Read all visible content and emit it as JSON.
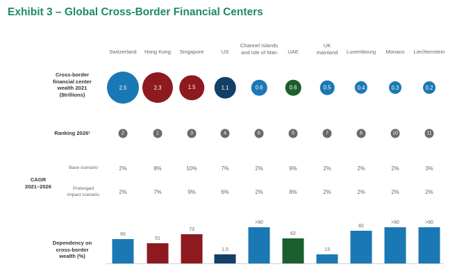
{
  "title": "Exhibit 3 – Global Cross-Border Financial Centers",
  "row_labels": {
    "wealth": [
      "Cross-border",
      "financial center",
      "wealth 2021",
      "($trillions)"
    ],
    "ranking": "Ranking 2026¹",
    "cagr": [
      "CAGR",
      "2021–2026"
    ],
    "base": "Base scenario",
    "prolonged": [
      "Prolonged",
      "impact scenario"
    ],
    "dependency": [
      "Dependency on",
      "cross-border",
      "wealth (%)"
    ]
  },
  "colors": {
    "blue": "#1a78b4",
    "red": "#8e1a1f",
    "navy": "#143f66",
    "green": "#1c5f2e",
    "grey": "#6a6a6a"
  },
  "chart_data": {
    "type": "table",
    "centers": [
      {
        "name": [
          "Switzerland"
        ],
        "wealth": 2.5,
        "wealth_label": "2.5",
        "ranking": 2,
        "cagr_base": "2%",
        "cagr_prolonged": "2%",
        "dependency": 60,
        "dependency_label": "60",
        "color": "#1a78b4"
      },
      {
        "name": [
          "Hong Kong"
        ],
        "wealth": 2.3,
        "wealth_label": "2.3",
        "ranking": 1,
        "cagr_base": "8%",
        "cagr_prolonged": "7%",
        "dependency": 51,
        "dependency_label": "51",
        "color": "#8e1a1f"
      },
      {
        "name": [
          "Singapore"
        ],
        "wealth": 1.5,
        "wealth_label": "1.5",
        "ranking": 3,
        "cagr_base": "10%",
        "cagr_prolonged": "9%",
        "dependency": 73,
        "dependency_label": "73",
        "color": "#8e1a1f"
      },
      {
        "name": [
          "US"
        ],
        "wealth": 1.1,
        "wealth_label": "1.1",
        "ranking": 4,
        "cagr_base": "7%",
        "cagr_prolonged": "6%",
        "dependency": 1.5,
        "dependency_label": "1.5",
        "color": "#143f66"
      },
      {
        "name": [
          "Channel Islands",
          "and Isle of Man"
        ],
        "wealth": 0.6,
        "wealth_label": "0.6",
        "ranking": 6,
        "cagr_base": "2%",
        "cagr_prolonged": "2%",
        "dependency": 90,
        "dependency_label": ">90",
        "color": "#1a78b4"
      },
      {
        "name": [
          "UAE"
        ],
        "wealth": 0.6,
        "wealth_label": "0.6",
        "ranking": 5,
        "cagr_base": "9%",
        "cagr_prolonged": "8%",
        "dependency": 62,
        "dependency_label": "62",
        "color": "#1c5f2e"
      },
      {
        "name": [
          "UK",
          "mainland"
        ],
        "wealth": 0.5,
        "wealth_label": "0.5",
        "ranking": 7,
        "cagr_base": "2%",
        "cagr_prolonged": "2%",
        "dependency": 13,
        "dependency_label": "13",
        "color": "#1a78b4"
      },
      {
        "name": [
          "Luxembourg"
        ],
        "wealth": 0.4,
        "wealth_label": "0.4",
        "ranking": 8,
        "cagr_base": "2%",
        "cagr_prolonged": "2%",
        "dependency": 82,
        "dependency_label": "82",
        "color": "#1a78b4"
      },
      {
        "name": [
          "Monaco"
        ],
        "wealth": 0.3,
        "wealth_label": "0.3",
        "ranking": 10,
        "cagr_base": "2%",
        "cagr_prolonged": "2%",
        "dependency": 90,
        "dependency_label": ">90",
        "color": "#1a78b4"
      },
      {
        "name": [
          "Liechtenstein"
        ],
        "wealth": 0.2,
        "wealth_label": "0.2",
        "ranking": 11,
        "cagr_base": "3%",
        "cagr_prolonged": "2%",
        "dependency": 90,
        "dependency_label": ">90",
        "color": "#1a78b4"
      }
    ]
  }
}
